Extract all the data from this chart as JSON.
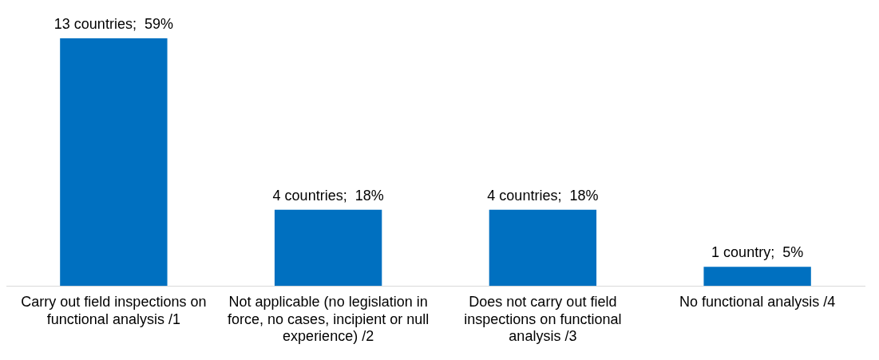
{
  "chart_data": {
    "type": "bar",
    "categories": [
      "Carry out field inspections on functional analysis /1",
      "Not applicable (no legislation in force, no cases, incipient or null experience) /2",
      "Does not carry out field inspections on functional analysis /3",
      "No functional analysis /4"
    ],
    "values": [
      13,
      4,
      4,
      1
    ],
    "value_labels": [
      "13 countries;  59%",
      "4 countries;  18%",
      "4 countries;  18%",
      "1 country;  5%"
    ],
    "color": "#0070c0",
    "grid": false,
    "legend": false
  }
}
